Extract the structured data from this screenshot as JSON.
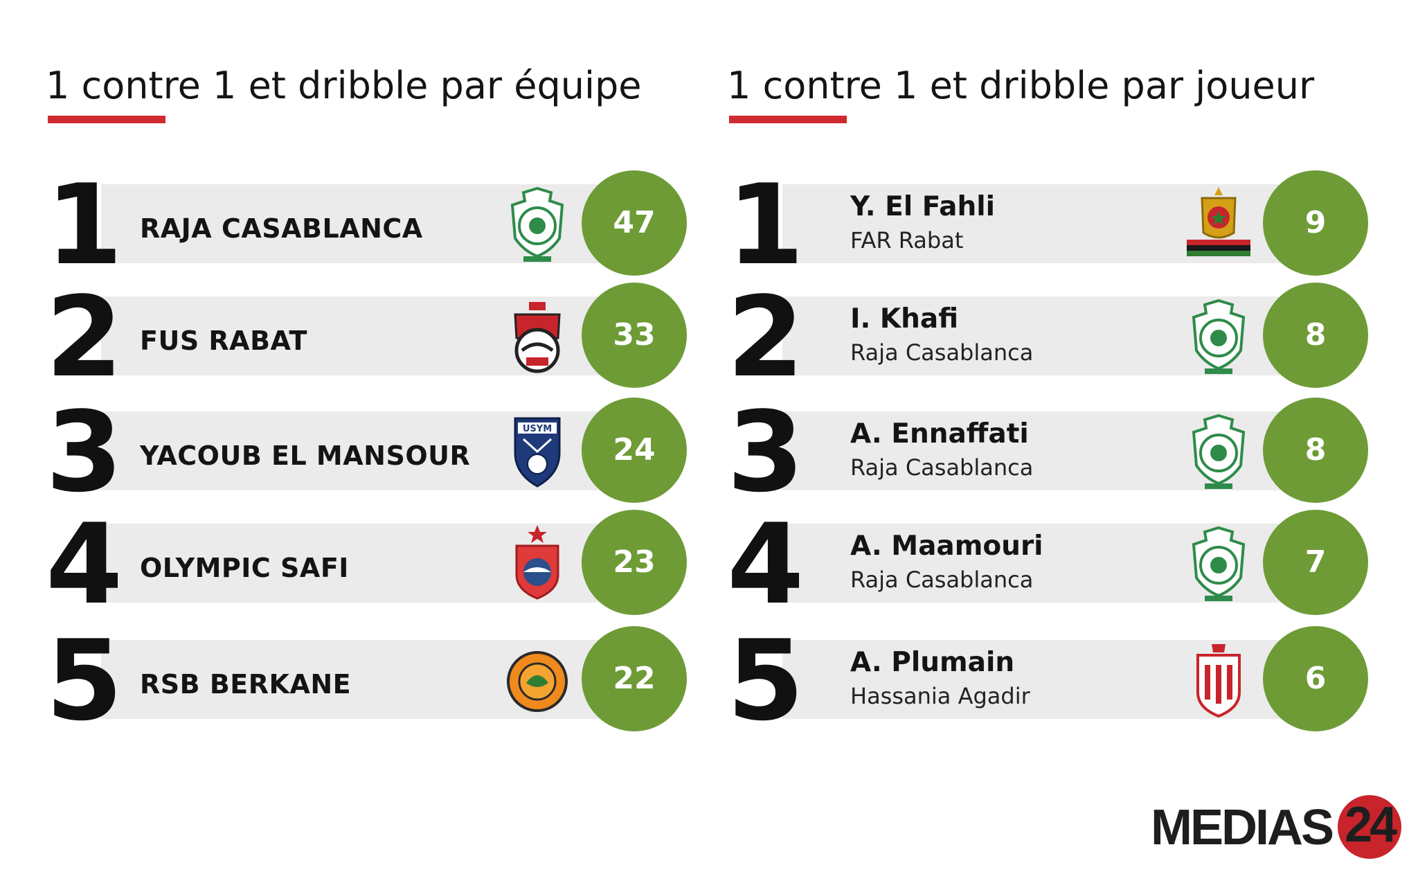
{
  "left_panel": {
    "title": "1 contre 1 et dribble par équipe",
    "rows": [
      {
        "rank": "1",
        "team": "RAJA CASABLANCA",
        "value": "47",
        "logo": "raja-casablanca-crest"
      },
      {
        "rank": "2",
        "team": "FUS RABAT",
        "value": "33",
        "logo": "fus-rabat-crest"
      },
      {
        "rank": "3",
        "team": "YACOUB EL MANSOUR",
        "value": "24",
        "logo": "usym-crest",
        "logo_text": "USYM"
      },
      {
        "rank": "4",
        "team": "OLYMPIC SAFI",
        "value": "23",
        "logo": "olympic-safi-crest"
      },
      {
        "rank": "5",
        "team": "RSB BERKANE",
        "value": "22",
        "logo": "rsb-berkane-crest"
      }
    ]
  },
  "right_panel": {
    "title": "1 contre 1 et dribble par joueur",
    "rows": [
      {
        "rank": "1",
        "player": "Y. El Fahli",
        "club": "FAR Rabat",
        "value": "9",
        "logo": "far-rabat-crest"
      },
      {
        "rank": "2",
        "player": "I. Khafi",
        "club": "Raja Casablanca",
        "value": "8",
        "logo": "raja-casablanca-crest"
      },
      {
        "rank": "3",
        "player": "A. Ennaffati",
        "club": "Raja Casablanca",
        "value": "8",
        "logo": "raja-casablanca-crest"
      },
      {
        "rank": "4",
        "player": "A. Maamouri",
        "club": "Raja Casablanca",
        "value": "7",
        "logo": "raja-casablanca-crest"
      },
      {
        "rank": "5",
        "player": "A. Plumain",
        "club": "Hassania Agadir",
        "value": "6",
        "logo": "hassania-agadir-crest"
      }
    ]
  },
  "brand": {
    "name": "MEDIAS",
    "number": "24"
  },
  "colors": {
    "accent_red": "#cf2a32",
    "score_green": "#6e9b36",
    "bar_grey": "#ebebeb",
    "raja_green": "#2e8b4a"
  }
}
